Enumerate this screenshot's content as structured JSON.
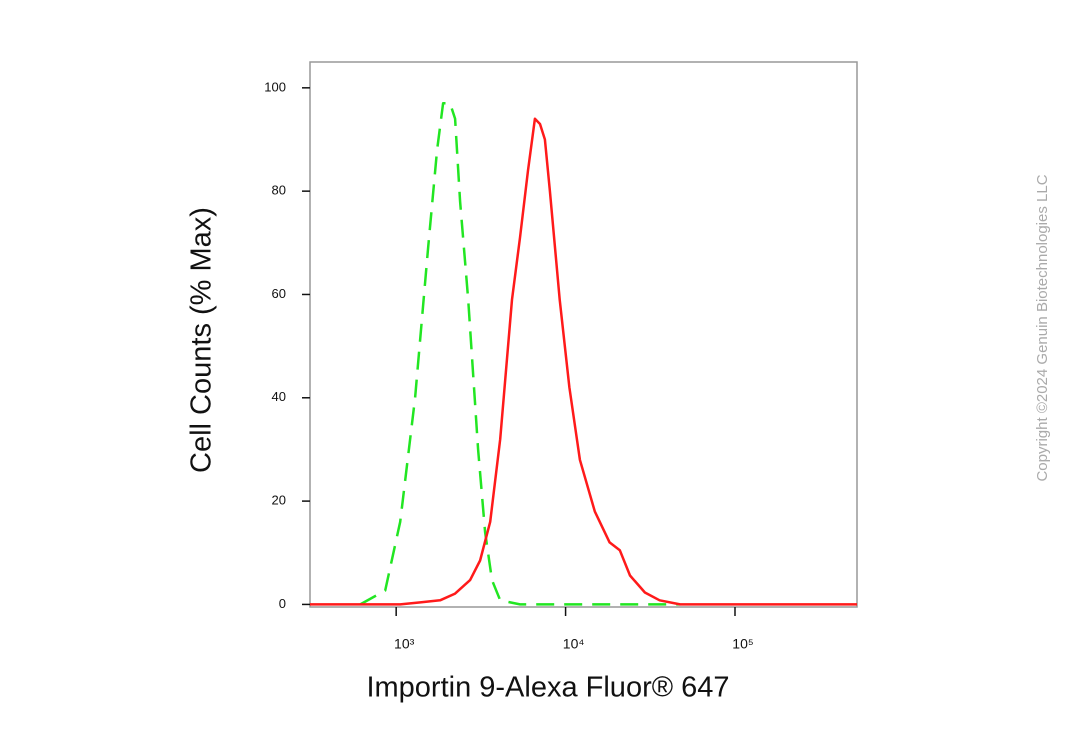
{
  "chart_data": {
    "type": "line",
    "x_label": "Importin 9-Alexa Fluor® 647",
    "y_label": "Cell Counts (% Max)",
    "x_scale": "log",
    "xlim": [
      310,
      525000
    ],
    "ylim": [
      -0.5,
      105
    ],
    "xticks": [
      {
        "value": 1000,
        "label": "10³"
      },
      {
        "value": 10000,
        "label": "10⁴"
      },
      {
        "value": 100000,
        "label": "10⁵"
      }
    ],
    "yticks": [
      0,
      20,
      40,
      60,
      80,
      100
    ],
    "series": [
      {
        "color": "#22e622",
        "dash": true,
        "x": [
          614,
          861,
          1056,
          1294,
          1544,
          1745,
          1893,
          2080,
          2228,
          2384,
          2660,
          3045,
          3350,
          3680,
          4110,
          5380,
          47400
        ],
        "values": [
          0,
          2.7,
          16,
          40,
          69,
          88,
          97,
          97,
          94,
          78,
          59,
          30,
          14,
          4.7,
          0.8,
          0,
          0
        ]
      },
      {
        "color": "#ff1a1a",
        "dash": false,
        "x": [
          310,
          1056,
          1386,
          1818,
          2228,
          2730,
          3130,
          3590,
          4110,
          4830,
          5380,
          6000,
          6590,
          7060,
          7550,
          8080,
          9230,
          10530,
          12140,
          14880,
          18200,
          20900,
          23990,
          29400,
          35900,
          47400,
          525000
        ],
        "values": [
          0,
          0,
          0.4,
          0.8,
          2.1,
          4.7,
          8.5,
          16,
          32,
          59,
          71,
          84,
          94,
          93,
          90,
          80,
          59,
          42,
          28,
          18,
          12,
          10.5,
          5.6,
          2.3,
          0.8,
          0,
          0
        ]
      }
    ]
  },
  "copyright": "Copyright ©2024 Genuin Biotechnologies LLC"
}
